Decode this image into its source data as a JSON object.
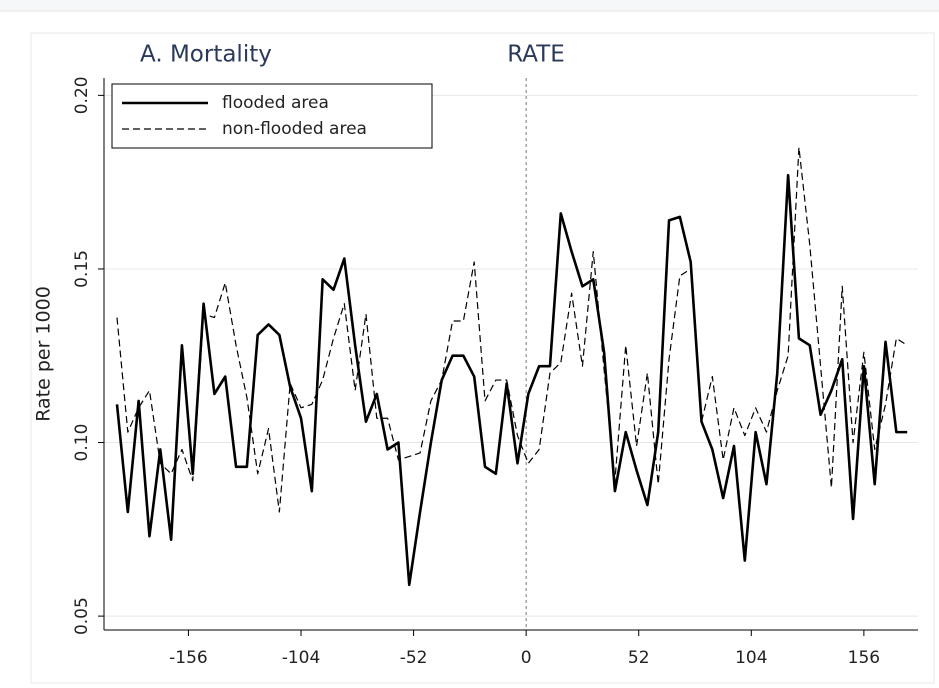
{
  "chart_data": {
    "type": "line",
    "title": "A. Mortality",
    "subtitle": "RATE",
    "y_label": "Rate per 1000",
    "x": [
      -189,
      -184,
      -179,
      -174,
      -169,
      -164,
      -159,
      -154,
      -149,
      -144,
      -139,
      -134,
      -129,
      -124,
      -119,
      -114,
      -109,
      -104,
      -99,
      -94,
      -89,
      -84,
      -79,
      -74,
      -69,
      -64,
      -59,
      -54,
      -49,
      -44,
      -39,
      -34,
      -29,
      -24,
      -19,
      -14,
      -9,
      -4,
      1,
      6,
      11,
      16,
      21,
      26,
      31,
      36,
      41,
      46,
      51,
      56,
      61,
      66,
      71,
      76,
      81,
      86,
      91,
      96,
      101,
      106,
      111,
      116,
      121,
      126,
      131,
      136,
      141,
      146,
      151,
      156,
      161,
      166,
      171,
      176
    ],
    "series": [
      {
        "name": "flooded area",
        "color": "#000000",
        "dash": false,
        "values": [
          0.111,
          0.08,
          0.112,
          0.073,
          0.098,
          0.072,
          0.128,
          0.091,
          0.14,
          0.114,
          0.119,
          0.093,
          0.093,
          0.131,
          0.134,
          0.131,
          0.116,
          0.107,
          0.086,
          0.147,
          0.144,
          0.153,
          0.128,
          0.106,
          0.114,
          0.098,
          0.1,
          0.059,
          0.08,
          0.1,
          0.118,
          0.125,
          0.125,
          0.119,
          0.093,
          0.091,
          0.117,
          0.094,
          0.114,
          0.122,
          0.122,
          0.166,
          0.155,
          0.145,
          0.147,
          0.126,
          0.086,
          0.103,
          0.092,
          0.082,
          0.103,
          0.164,
          0.165,
          0.152,
          0.106,
          0.098,
          0.084,
          0.099,
          0.066,
          0.103,
          0.088,
          0.12,
          0.177,
          0.13,
          0.128,
          0.108,
          0.115,
          0.124,
          0.078,
          0.122,
          0.088,
          0.129,
          0.103,
          0.103
        ]
      },
      {
        "name": "non-flooded area",
        "color": "#000000",
        "dash": true,
        "values": [
          0.136,
          0.103,
          0.11,
          0.115,
          0.094,
          0.091,
          0.098,
          0.089,
          0.137,
          0.136,
          0.146,
          0.128,
          0.113,
          0.091,
          0.104,
          0.08,
          0.117,
          0.11,
          0.111,
          0.118,
          0.13,
          0.14,
          0.115,
          0.137,
          0.107,
          0.107,
          0.095,
          0.096,
          0.097,
          0.112,
          0.118,
          0.135,
          0.135,
          0.152,
          0.112,
          0.118,
          0.118,
          0.102,
          0.094,
          0.098,
          0.12,
          0.123,
          0.143,
          0.122,
          0.155,
          0.121,
          0.089,
          0.128,
          0.099,
          0.12,
          0.088,
          0.124,
          0.148,
          0.15,
          0.106,
          0.119,
          0.095,
          0.11,
          0.102,
          0.11,
          0.103,
          0.115,
          0.125,
          0.185,
          0.157,
          0.122,
          0.087,
          0.145,
          0.1,
          0.126,
          0.098,
          0.111,
          0.13,
          0.128
        ]
      }
    ],
    "xlim": [
      -195,
      181
    ],
    "ylim": [
      0.046,
      0.205
    ],
    "xticks": [
      -156,
      -104,
      -52,
      0,
      52,
      104,
      156
    ],
    "yticks": [
      {
        "value": 0.05,
        "label": "0.05"
      },
      {
        "value": 0.1,
        "label": "0.10"
      },
      {
        "value": 0.15,
        "label": "0.15"
      },
      {
        "value": 0.2,
        "label": "0.20"
      }
    ],
    "vline": 0,
    "grid": true,
    "legend": "upper left"
  }
}
